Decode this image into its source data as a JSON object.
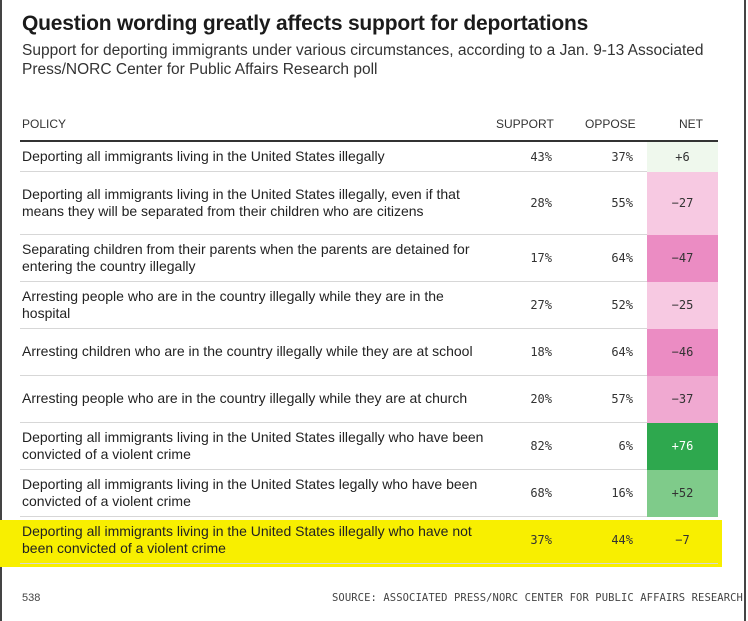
{
  "title": "Question wording greatly affects support for deportations",
  "subtitle": "Support for deporting immigrants under various circumstances, according to a Jan. 9-13 Associated Press/NORC Center for Public Affairs Research poll",
  "columns": {
    "policy": "POLICY",
    "support": "SUPPORT",
    "oppose": "OPPOSE",
    "net": "NET"
  },
  "colors": {
    "highlight": "#f8ef00",
    "net_pos_strong": "#2ea84e",
    "net_pos_med": "#7fcb8a",
    "net_pos_light": "#eff8ed",
    "net_neg_light": "#f7c9e2",
    "net_neg_med": "#f0a9d1",
    "net_neg_strong": "#eb8cc3"
  },
  "chart_data": {
    "type": "table",
    "title": "Question wording greatly affects support for deportations",
    "columns": [
      "POLICY",
      "SUPPORT",
      "OPPOSE",
      "NET"
    ],
    "rows": [
      {
        "policy": "Deporting all immigrants living in the United States illegally",
        "support": "43%",
        "oppose": "37%",
        "net": "+6",
        "net_value": 6
      },
      {
        "policy": "Deporting all immigrants living in the United States illegally, even if that means they will be separated from their children who are citizens",
        "support": "28%",
        "oppose": "55%",
        "net": "−27",
        "net_value": -27
      },
      {
        "policy": "Separating children from their parents when the parents are detained for entering the country illegally",
        "support": "17%",
        "oppose": "64%",
        "net": "−47",
        "net_value": -47
      },
      {
        "policy": "Arresting people who are in the country illegally while they are in the hospital",
        "support": "27%",
        "oppose": "52%",
        "net": "−25",
        "net_value": -25
      },
      {
        "policy": "Arresting children who are in the country illegally while they are at school",
        "support": "18%",
        "oppose": "64%",
        "net": "−46",
        "net_value": -46
      },
      {
        "policy": "Arresting people who are in the country illegally while they are at church",
        "support": "20%",
        "oppose": "57%",
        "net": "−37",
        "net_value": -37
      },
      {
        "policy": "Deporting all immigrants living in the United States illegally who have been convicted of a violent crime",
        "support": "82%",
        "oppose": "6%",
        "net": "+76",
        "net_value": 76
      },
      {
        "policy": "Deporting all immigrants living in the United States legally who have been convicted of a violent crime",
        "support": "68%",
        "oppose": "16%",
        "net": "+52",
        "net_value": 52
      },
      {
        "policy": "Deporting all immigrants living in the United States illegally who have not been convicted of a violent crime",
        "support": "37%",
        "oppose": "44%",
        "net": "−7",
        "net_value": -7,
        "highlighted": true
      }
    ]
  },
  "footer": {
    "page_number": "538",
    "source": "SOURCE: ASSOCIATED PRESS/NORC CENTER FOR PUBLIC AFFAIRS RESEARCH"
  }
}
